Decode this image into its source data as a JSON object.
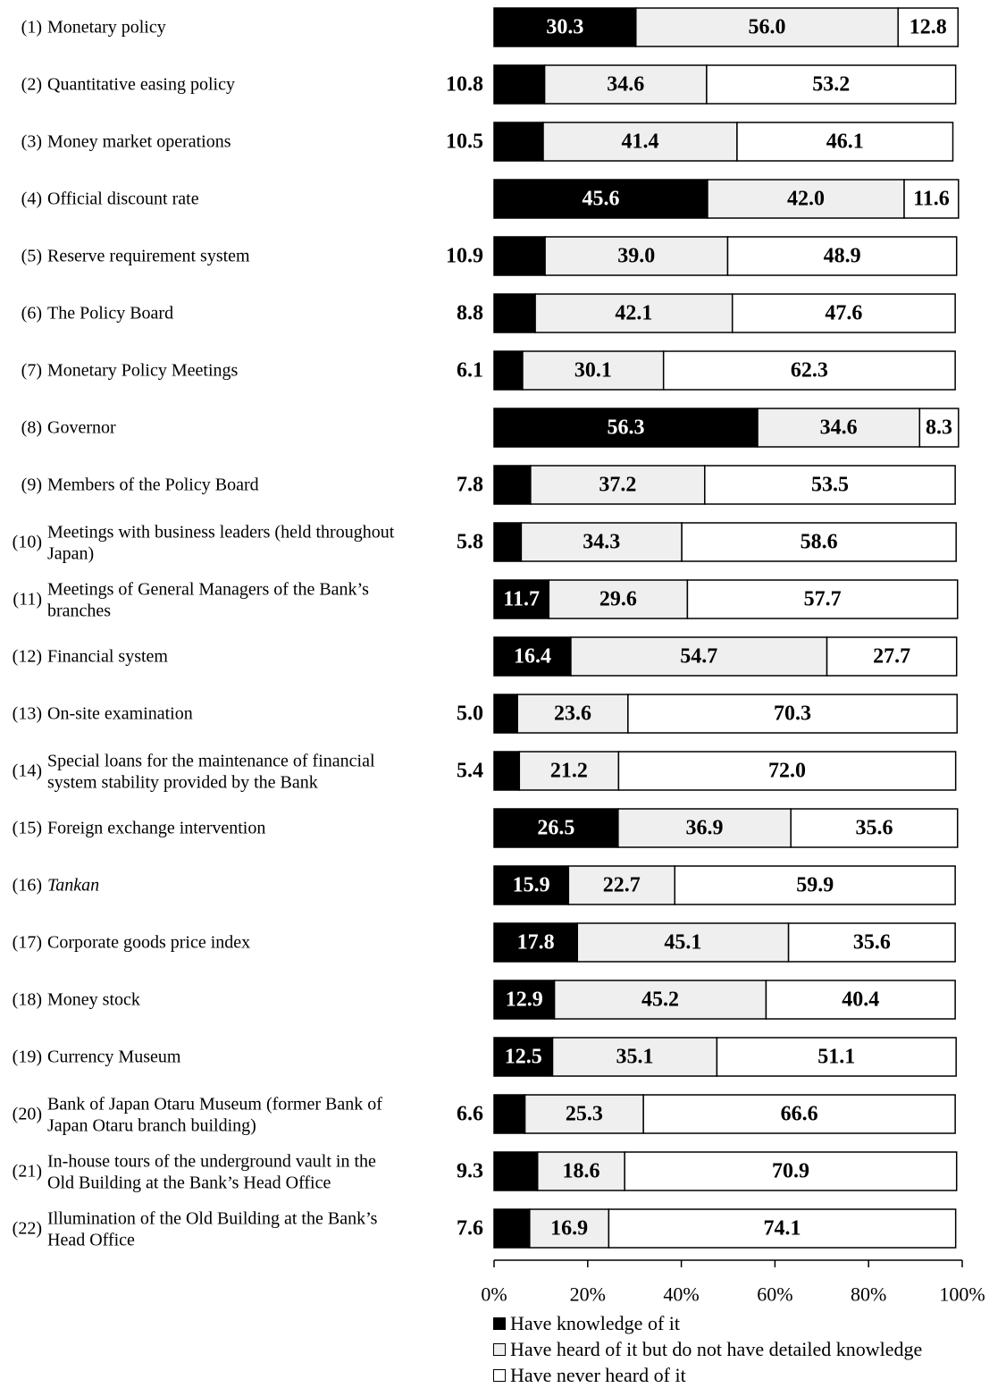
{
  "chart_data": {
    "type": "bar",
    "orientation": "horizontal",
    "stacked": "100%",
    "categories": [
      {
        "num": "(1)",
        "lines": [
          "Monetary policy"
        ]
      },
      {
        "num": "(2)",
        "lines": [
          "Quantitative easing policy"
        ]
      },
      {
        "num": "(3)",
        "lines": [
          "Money market operations"
        ]
      },
      {
        "num": "(4)",
        "lines": [
          "Official discount rate"
        ]
      },
      {
        "num": "(5)",
        "lines": [
          "Reserve requirement system"
        ]
      },
      {
        "num": "(6)",
        "lines": [
          "The Policy Board"
        ]
      },
      {
        "num": "(7)",
        "lines": [
          "Monetary Policy Meetings"
        ]
      },
      {
        "num": "(8)",
        "lines": [
          "Governor"
        ]
      },
      {
        "num": "(9)",
        "lines": [
          "Members of the Policy Board"
        ]
      },
      {
        "num": "(10)",
        "lines": [
          "Meetings with business leaders (held throughout",
          "Japan)"
        ]
      },
      {
        "num": "(11)",
        "lines": [
          "Meetings of General Managers of the Bank’s",
          "branches"
        ]
      },
      {
        "num": "(12)",
        "lines": [
          "Financial system"
        ]
      },
      {
        "num": "(13)",
        "lines": [
          "On-site examination"
        ]
      },
      {
        "num": "(14)",
        "lines": [
          "Special loans for the maintenance of financial",
          "system stability provided by the Bank"
        ]
      },
      {
        "num": "(15)",
        "lines": [
          "Foreign exchange intervention"
        ]
      },
      {
        "num": "(16)",
        "lines": [
          "Tankan"
        ],
        "italic": true
      },
      {
        "num": "(17)",
        "lines": [
          "Corporate goods price index"
        ]
      },
      {
        "num": "(18)",
        "lines": [
          "Money stock"
        ]
      },
      {
        "num": "(19)",
        "lines": [
          "Currency Museum"
        ]
      },
      {
        "num": "(20)",
        "lines": [
          "Bank of Japan Otaru Museum (former Bank of",
          "Japan Otaru branch building)"
        ]
      },
      {
        "num": "(21)",
        "lines": [
          "In-house tours of the underground vault in the",
          "Old Building at the Bank’s Head Office"
        ]
      },
      {
        "num": "(22)",
        "lines": [
          "Illumination of the Old Building at the Bank’s",
          "Head Office"
        ]
      }
    ],
    "series": [
      {
        "name": "Have knowledge of it",
        "color": "#000000",
        "values": [
          30.3,
          10.8,
          10.5,
          45.6,
          10.9,
          8.8,
          6.1,
          56.3,
          7.8,
          5.8,
          11.7,
          16.4,
          5.0,
          5.4,
          26.5,
          15.9,
          17.8,
          12.9,
          12.5,
          6.6,
          9.3,
          7.6
        ]
      },
      {
        "name": "Have heard of it but do not have detailed knowledge",
        "color": "#efefef",
        "values": [
          56.0,
          34.6,
          41.4,
          42.0,
          39.0,
          42.1,
          30.1,
          34.6,
          37.2,
          34.3,
          29.6,
          54.7,
          23.6,
          21.2,
          36.9,
          22.7,
          45.1,
          45.2,
          35.1,
          25.3,
          18.6,
          16.9
        ]
      },
      {
        "name": "Have never heard of it",
        "color": "#ffffff",
        "values": [
          12.8,
          53.2,
          46.1,
          11.6,
          48.9,
          47.6,
          62.3,
          8.3,
          53.5,
          58.6,
          57.7,
          27.7,
          70.3,
          72.0,
          35.6,
          59.9,
          35.6,
          40.4,
          51.1,
          66.6,
          70.9,
          74.1
        ]
      }
    ],
    "x_ticks": [
      "0%",
      "20%",
      "40%",
      "60%",
      "80%",
      "100%"
    ],
    "xlim": [
      0,
      100
    ],
    "grid": false,
    "legend_position": "bottom"
  },
  "legend": {
    "items": [
      {
        "label": "Have knowledge of it",
        "color": "#000000"
      },
      {
        "label": "Have heard of it but do not have detailed knowledge",
        "color": "#efefef"
      },
      {
        "label": "Have never heard of it",
        "color": "#ffffff"
      }
    ]
  }
}
